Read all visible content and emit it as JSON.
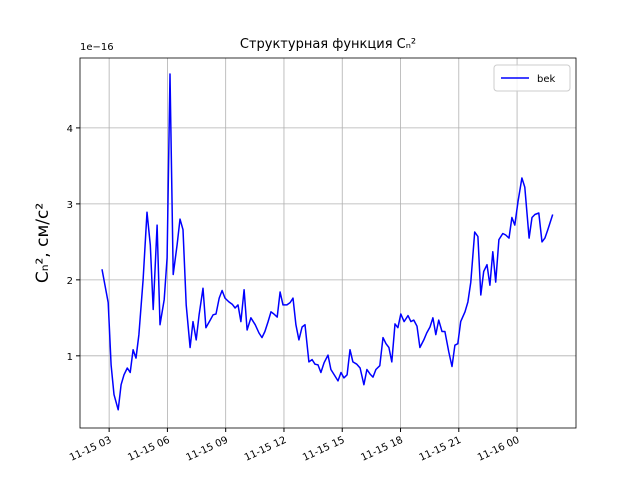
{
  "chart_data": {
    "type": "line",
    "title": "Структурная функция Cₙ²",
    "ylabel": "Cₙ², см/с²",
    "offset_label": "1e−16",
    "x": [
      "11-15 02:38",
      "11-15 02:57",
      "11-15 03:06",
      "11-15 03:15",
      "11-15 03:28",
      "11-15 03:37",
      "11-15 03:46",
      "11-15 03:56",
      "11-15 04:05",
      "11-15 04:14",
      "11-15 04:23",
      "11-15 04:32",
      "11-15 04:45",
      "11-15 04:57",
      "11-15 05:07",
      "11-15 05:16",
      "11-15 05:28",
      "11-15 05:37",
      "11-15 05:50",
      "11-15 05:59",
      "11-15 06:08",
      "11-15 06:18",
      "11-15 06:30",
      "11-15 06:39",
      "11-15 06:48",
      "11-15 06:58",
      "11-15 07:10",
      "11-15 07:19",
      "11-15 07:29",
      "11-15 07:38",
      "11-15 07:50",
      "11-15 07:59",
      "11-15 08:12",
      "11-15 08:21",
      "11-15 08:30",
      "11-15 08:40",
      "11-15 08:49",
      "11-15 08:58",
      "11-15 09:10",
      "11-15 09:20",
      "11-15 09:29",
      "11-15 09:38",
      "11-15 09:47",
      "11-15 09:57",
      "11-15 10:06",
      "11-15 10:18",
      "11-15 10:31",
      "11-15 10:43",
      "11-15 10:52",
      "11-15 11:01",
      "11-15 11:11",
      "11-15 11:20",
      "11-15 11:29",
      "11-15 11:39",
      "11-15 11:48",
      "11-15 11:57",
      "11-15 12:09",
      "11-15 12:19",
      "11-15 12:28",
      "11-15 12:37",
      "11-15 12:46",
      "11-15 12:56",
      "11-15 13:05",
      "11-15 13:17",
      "11-15 13:27",
      "11-15 13:36",
      "11-15 13:45",
      "11-15 13:54",
      "11-15 14:04",
      "11-15 14:16",
      "11-15 14:25",
      "11-15 14:34",
      "11-15 14:47",
      "11-15 14:56",
      "11-15 15:05",
      "11-15 15:15",
      "11-15 15:24",
      "11-15 15:33",
      "11-15 15:45",
      "11-15 15:55",
      "11-15 16:07",
      "11-15 16:16",
      "11-15 16:26",
      "11-15 16:35",
      "11-15 16:44",
      "11-15 16:56",
      "11-15 17:06",
      "11-15 17:15",
      "11-15 17:24",
      "11-15 17:33",
      "11-15 17:43",
      "11-15 17:52",
      "11-15 18:01",
      "11-15 18:11",
      "11-15 18:23",
      "11-15 18:32",
      "11-15 18:41",
      "11-15 18:51",
      "11-15 19:00",
      "11-15 19:12",
      "11-15 19:21",
      "11-15 19:31",
      "11-15 19:40",
      "11-15 19:49",
      "11-15 19:58",
      "11-15 20:08",
      "11-15 20:17",
      "11-15 20:29",
      "11-15 20:39",
      "11-15 20:48",
      "11-15 20:57",
      "11-15 21:06",
      "11-15 21:19",
      "11-15 21:28",
      "11-15 21:37",
      "11-15 21:49",
      "11-15 21:59",
      "11-15 22:08",
      "11-15 22:17",
      "11-15 22:27",
      "11-15 22:36",
      "11-15 22:45",
      "11-15 22:54",
      "11-15 23:04",
      "11-15 23:16",
      "11-15 23:25",
      "11-15 23:35",
      "11-15 23:44",
      "11-15 23:53",
      "11-16 00:03",
      "11-16 00:15",
      "11-16 00:24",
      "11-16 00:37",
      "11-16 00:46",
      "11-16 00:55",
      "11-16 01:07",
      "11-16 01:17",
      "11-16 01:26",
      "11-16 01:35",
      "11-16 01:50"
    ],
    "series": [
      {
        "name": "bek",
        "color": "#0000ff",
        "values": [
          2.14,
          1.7,
          0.88,
          0.49,
          0.29,
          0.62,
          0.75,
          0.84,
          0.78,
          1.08,
          0.97,
          1.28,
          2.0,
          2.89,
          2.46,
          1.61,
          2.72,
          1.41,
          1.74,
          2.29,
          4.71,
          2.07,
          2.46,
          2.8,
          2.66,
          1.67,
          1.11,
          1.45,
          1.21,
          1.54,
          1.89,
          1.37,
          1.47,
          1.54,
          1.55,
          1.76,
          1.86,
          1.76,
          1.71,
          1.68,
          1.63,
          1.67,
          1.45,
          1.87,
          1.34,
          1.5,
          1.41,
          1.3,
          1.24,
          1.32,
          1.45,
          1.58,
          1.55,
          1.51,
          1.84,
          1.67,
          1.67,
          1.7,
          1.76,
          1.41,
          1.21,
          1.38,
          1.41,
          0.92,
          0.95,
          0.89,
          0.88,
          0.78,
          0.91,
          1.01,
          0.82,
          0.76,
          0.67,
          0.78,
          0.71,
          0.75,
          1.08,
          0.92,
          0.89,
          0.84,
          0.62,
          0.82,
          0.76,
          0.72,
          0.82,
          0.87,
          1.24,
          1.16,
          1.11,
          0.92,
          1.42,
          1.37,
          1.55,
          1.45,
          1.53,
          1.45,
          1.47,
          1.39,
          1.11,
          1.21,
          1.3,
          1.38,
          1.5,
          1.28,
          1.47,
          1.32,
          1.32,
          1.05,
          0.86,
          1.14,
          1.16,
          1.45,
          1.58,
          1.71,
          1.97,
          2.63,
          2.57,
          1.8,
          2.11,
          2.2,
          1.93,
          2.37,
          1.97,
          2.53,
          2.61,
          2.59,
          2.55,
          2.82,
          2.72,
          3.03,
          3.34,
          3.22,
          2.55,
          2.82,
          2.86,
          2.88,
          2.5,
          2.55,
          2.66,
          2.86
        ]
      }
    ],
    "xlim": [
      "11-15 01:30",
      "11-16 03:02"
    ],
    "xticks": [
      "11-15 03",
      "11-15 06",
      "11-15 09",
      "11-15 12",
      "11-15 15",
      "11-15 18",
      "11-15 21",
      "11-16 00"
    ],
    "ylim": [
      0.05,
      4.92
    ],
    "yticks": [
      1,
      2,
      3,
      4
    ],
    "grid": true,
    "legend": "upper right"
  }
}
